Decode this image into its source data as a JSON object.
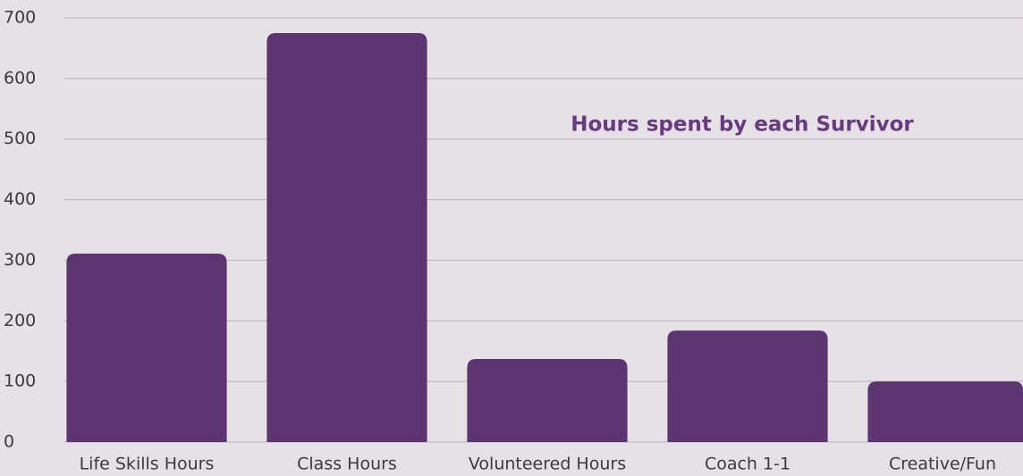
{
  "chart_data": {
    "type": "bar",
    "title": "Hours spent by each Survivor",
    "categories": [
      "Life Skills Hours",
      "Class Hours",
      "Volunteered Hours",
      "Coach 1-1",
      "Creative/Fun"
    ],
    "values": [
      311,
      675,
      137,
      184,
      100
    ],
    "color": "#5c3570",
    "ylim": [
      0,
      700
    ],
    "yticks": [
      0,
      100,
      200,
      300,
      400,
      500,
      600,
      700
    ],
    "grid": true
  }
}
